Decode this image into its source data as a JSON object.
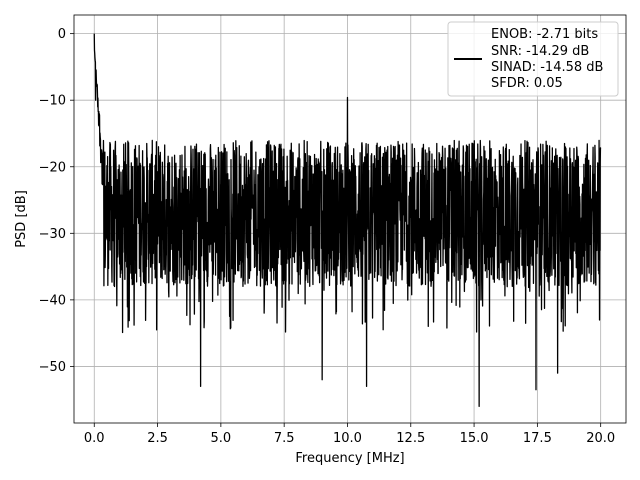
{
  "chart_data": {
    "type": "line",
    "xlabel": "Frequency [MHz]",
    "ylabel": "PSD [dB]",
    "xlim": [
      -0.8,
      21.0
    ],
    "ylim": [
      -58.5,
      2.8
    ],
    "xticks": [
      0.0,
      2.5,
      5.0,
      7.5,
      10.0,
      12.5,
      15.0,
      17.5,
      20.0
    ],
    "xtick_labels": [
      "0.0",
      "2.5",
      "5.0",
      "7.5",
      "10.0",
      "12.5",
      "15.0",
      "17.5",
      "20.0"
    ],
    "yticks": [
      0,
      -10,
      -20,
      -30,
      -40,
      -50
    ],
    "ytick_labels": [
      "0",
      "−10",
      "−20",
      "−30",
      "−40",
      "−50"
    ],
    "grid": true,
    "legend_position": "top-right",
    "line_color": "#000000",
    "series": [
      {
        "name": "ENOB: -2.71 bits\nSNR: -14.29 dB\nSINAD: -14.58 dB\nSFDR: 0.05",
        "legend_lines": [
          "ENOB: -2.71 bits",
          "SNR: -14.29 dB",
          "SINAD: -14.58 dB",
          "SFDR: 0.05"
        ],
        "noise_floor_db": -27,
        "x_range": [
          0.0,
          20.0
        ],
        "peaks": [
          {
            "x": 0.0,
            "y": 0
          },
          {
            "x": 0.05,
            "y": -10
          },
          {
            "x": 10.0,
            "y": -9.6
          }
        ],
        "troughs": [
          {
            "x": 4.2,
            "y": -53
          },
          {
            "x": 9.0,
            "y": -52
          },
          {
            "x": 10.75,
            "y": -53
          },
          {
            "x": 15.2,
            "y": -56
          },
          {
            "x": 17.45,
            "y": -53.5
          },
          {
            "x": 18.3,
            "y": -51
          }
        ]
      }
    ]
  }
}
